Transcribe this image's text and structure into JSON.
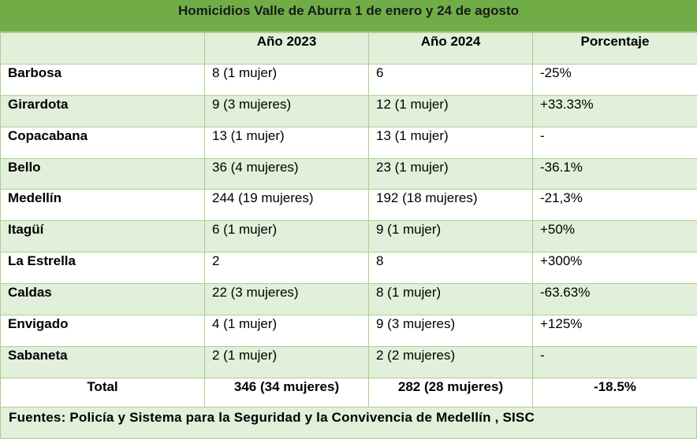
{
  "title": "Homicidios Valle de Aburra 1 de enero y 24 de agosto",
  "headers": [
    "",
    "Año 2023",
    "Año 2024",
    "Porcentaje"
  ],
  "rows": [
    {
      "municipio": "Barbosa",
      "y2023": "8 (1 mujer)",
      "y2024": "6",
      "pct": "-25%"
    },
    {
      "municipio": "Girardota",
      "y2023": "9 (3 mujeres)",
      "y2024": "12 (1 mujer)",
      "pct": "+33.33%"
    },
    {
      "municipio": "Copacabana",
      "y2023": "13 (1 mujer)",
      "y2024": "13 (1 mujer)",
      "pct": "-"
    },
    {
      "municipio": "Bello",
      "y2023": "36 (4 mujeres)",
      "y2024": "23 (1 mujer)",
      "pct": "-36.1%"
    },
    {
      "municipio": "Medellín",
      "y2023": "244 (19 mujeres)",
      "y2024": "192 (18 mujeres)",
      "pct": "-21,3%"
    },
    {
      "municipio": "Itagüí",
      "y2023": "6 (1 mujer)",
      "y2024": "9 (1 mujer)",
      "pct": "+50%"
    },
    {
      "municipio": "La Estrella",
      "y2023": "2",
      "y2024": "8",
      "pct": "+300%"
    },
    {
      "municipio": "Caldas",
      "y2023": "22 (3 mujeres)",
      "y2024": "8 (1 mujer)",
      "pct": "-63.63%"
    },
    {
      "municipio": "Envigado",
      "y2023": "4 (1 mujer)",
      "y2024": "9 (3 mujeres)",
      "pct": "+125%"
    },
    {
      "municipio": "Sabaneta",
      "y2023": "2 (1 mujer)",
      "y2024": "2 (2 mujeres)",
      "pct": "-"
    }
  ],
  "total": {
    "label": "Total",
    "y2023": "346 (34 mujeres)",
    "y2024": "282 (28 mujeres)",
    "pct": "-18.5%"
  },
  "footer": "Fuentes: Policía y Sistema para la Seguridad y la Convivencia de Medellín , SISC",
  "colors": {
    "title_bg": "#70ad47",
    "band": "#e2efda",
    "border": "#a9d18e"
  }
}
